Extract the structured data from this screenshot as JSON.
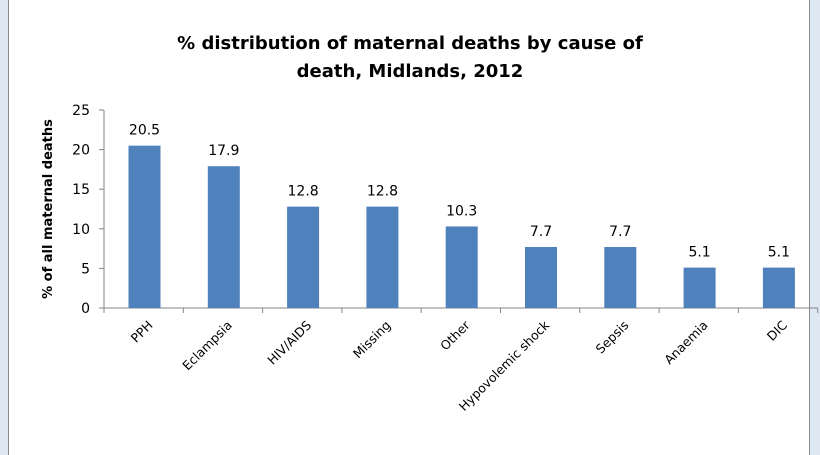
{
  "chart_data": {
    "type": "bar",
    "title_line1": "% distribution of maternal deaths by cause of",
    "title_line2": "death, Midlands, 2012",
    "xlabel": "",
    "ylabel": "% of all maternal deaths",
    "ylim": [
      0,
      25
    ],
    "yticks": [
      0,
      5,
      10,
      15,
      20,
      25
    ],
    "grid": false,
    "legend": "none",
    "bar_color": "#4f81bd",
    "categories": [
      "PPH",
      "Eclampsia",
      "HIV/AIDS",
      "Missing",
      "Other",
      "Hypovolemic shock",
      "Sepsis",
      "Anaemia",
      "DIC"
    ],
    "values": [
      20.5,
      17.9,
      12.8,
      12.8,
      10.3,
      7.7,
      7.7,
      5.1,
      5.1
    ],
    "value_labels": [
      "20.5",
      "17.9",
      "12.8",
      "12.8",
      "10.3",
      "7.7",
      "7.7",
      "5.1",
      "5.1"
    ]
  }
}
